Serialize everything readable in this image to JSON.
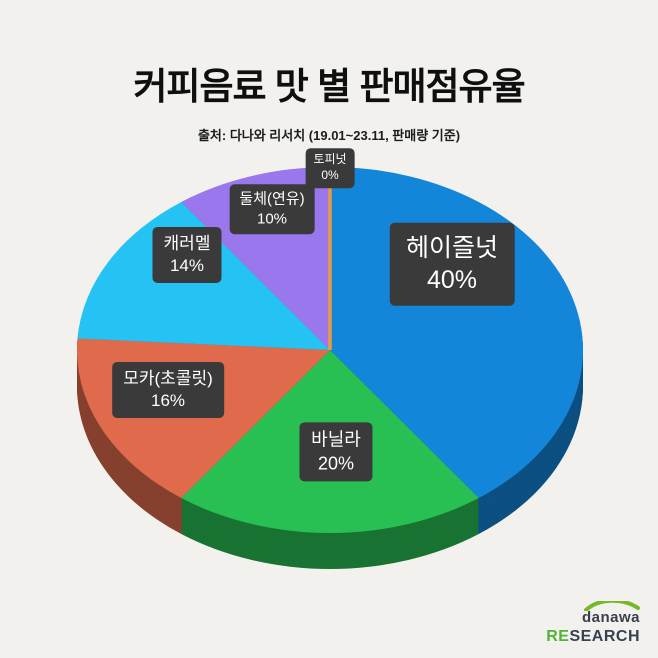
{
  "page": {
    "background": "#f2f1ee"
  },
  "header": {
    "title": "커피음료 맛 별 판매점유율",
    "subtitle": "출처: 다나와 리서치 (19.01~23.11, 판매량 기준)"
  },
  "chart_data": {
    "type": "pie",
    "title": "커피음료 맛 별 판매점유율",
    "source": "출처: 다나와 리서치 (19.01~23.11, 판매량 기준)",
    "unit": "percent",
    "style": "3d-pie",
    "start_angle_deg": 0,
    "direction": "clockwise",
    "slices": [
      {
        "label": "헤이즐넛",
        "value": 40,
        "color": "#1486d9"
      },
      {
        "label": "바닐라",
        "value": 20,
        "color": "#29c053"
      },
      {
        "label": "모카(초콜릿)",
        "value": 16,
        "color": "#e06a4c"
      },
      {
        "label": "캐러멜",
        "value": 14,
        "color": "#25c3f3"
      },
      {
        "label": "둘체(연유)",
        "value": 10,
        "color": "#9a77ec"
      },
      {
        "label": "토피넛",
        "value": 0,
        "color": "#eb9b3e"
      }
    ],
    "label_format": "{label} {value}%"
  },
  "logo": {
    "brand": "danawa",
    "sub_brand_highlight": "RE",
    "sub_brand_rest": "SEARCH"
  }
}
